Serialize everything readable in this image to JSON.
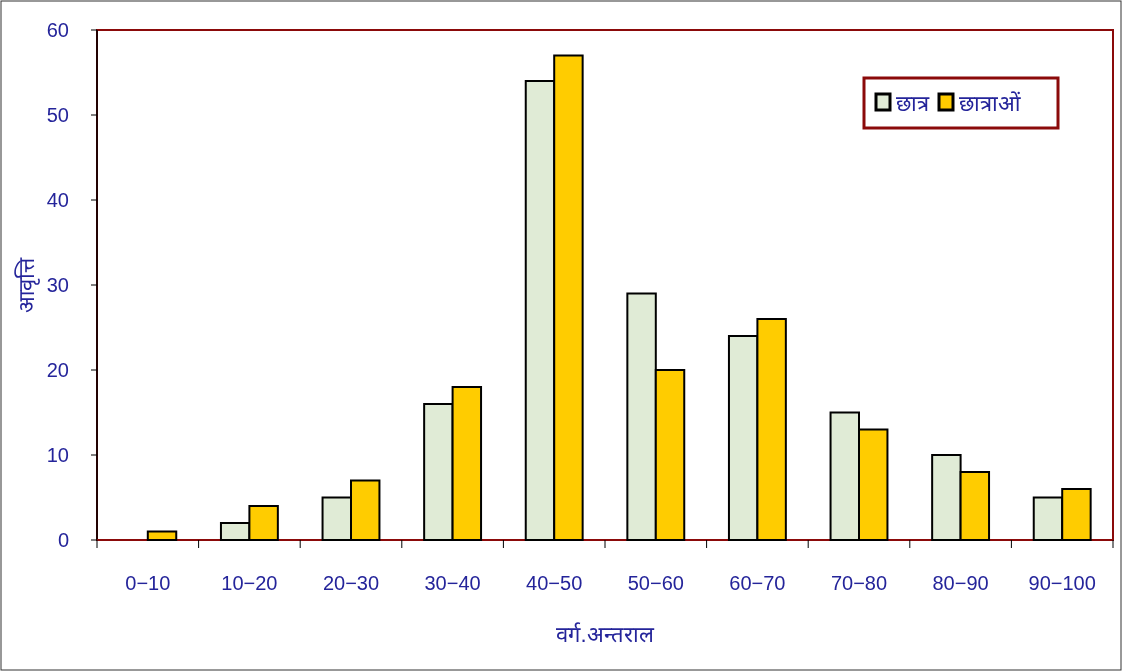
{
  "chart_data": {
    "type": "bar",
    "xlabel": "वर्ग.अन्तराल",
    "ylabel": "आवृत्ति",
    "categories": [
      "0−10",
      "10−20",
      "20−30",
      "30−40",
      "40−50",
      "50−60",
      "60−70",
      "70−80",
      "80−90",
      "90−100"
    ],
    "series": [
      {
        "name": "छात्र",
        "color": "#e0ebd6",
        "values": [
          0,
          2,
          5,
          16,
          54,
          29,
          24,
          15,
          10,
          5
        ]
      },
      {
        "name": "छात्राओं",
        "color": "#ffcc00",
        "values": [
          1,
          4,
          7,
          18,
          57,
          20,
          26,
          13,
          8,
          6
        ]
      }
    ],
    "ylim": [
      0,
      60
    ],
    "yticks": [
      0,
      10,
      20,
      30,
      40,
      50,
      60
    ],
    "grid": false,
    "legend": "top right"
  }
}
